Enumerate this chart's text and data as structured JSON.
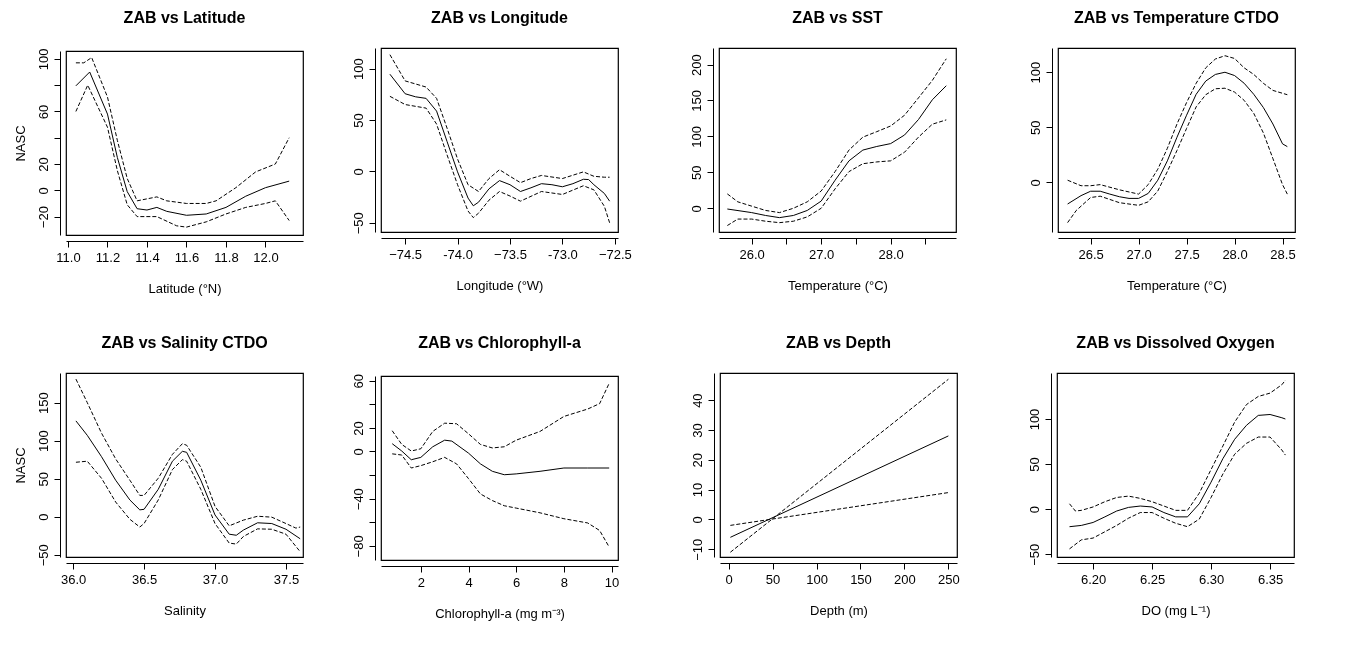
{
  "chart_data": [
    {
      "type": "line",
      "title": "ZAB vs Latitude",
      "xlabel": "Latitude (°N)",
      "ylabel": "NASC",
      "xlim": [
        10.99,
        12.19
      ],
      "ylim": [
        -34,
        106
      ],
      "xticks": [
        {
          "value": 11,
          "label": "11.0"
        },
        11.2,
        11.4,
        11.6,
        11.8,
        {
          "value": 12,
          "label": "12.0"
        }
      ],
      "yticks": [
        -20,
        0,
        20,
        {
          "value": 40,
          "label": null
        },
        60,
        {
          "value": 80,
          "label": null
        },
        100
      ],
      "series": [
        {
          "color": "#000000",
          "line_style": "solid",
          "x": [
            11.04,
            11.11,
            11.2,
            11.25,
            11.3,
            11.35,
            11.4,
            11.45,
            11.5,
            11.6,
            11.7,
            11.8,
            11.9,
            12.0,
            12.12
          ],
          "values": [
            79.5,
            90,
            58,
            25,
            -1,
            -14,
            -15,
            -13,
            -16,
            -19,
            -18,
            -13,
            -4.5,
            2,
            7
          ]
        },
        {
          "color": "#000000",
          "line_style": "dashed",
          "x": [
            11.04,
            11.08,
            11.12,
            11.2,
            11.25,
            11.3,
            11.35,
            11.45,
            11.5,
            11.6,
            11.7,
            11.75,
            11.85,
            11.95,
            12.05,
            12.12
          ],
          "values": [
            97,
            97,
            101,
            71,
            38,
            9,
            -8,
            -5,
            -8,
            -10,
            -10,
            -8,
            2,
            14,
            20,
            40
          ]
        },
        {
          "color": "#000000",
          "line_style": "dashed",
          "x": [
            11.04,
            11.1,
            11.2,
            11.25,
            11.3,
            11.35,
            11.45,
            11.55,
            11.6,
            11.7,
            11.8,
            11.9,
            12.0,
            12.05,
            12.12
          ],
          "values": [
            60,
            80,
            48,
            15,
            -11,
            -20,
            -20,
            -27,
            -28,
            -24,
            -18,
            -13,
            -10,
            -8,
            -23
          ]
        }
      ]
    },
    {
      "type": "line",
      "title": "ZAB vs Longitude",
      "xlabel": "Longitude (°W)",
      "xlim": [
        -74.73,
        -72.47
      ],
      "ylim": [
        -59,
        120
      ],
      "xticks": [
        -74.5,
        {
          "value": -74,
          "label": "-74.0"
        },
        -73.5,
        {
          "value": -73,
          "label": "-73.0"
        },
        -72.5
      ],
      "yticks": [
        -50,
        0,
        50,
        100
      ],
      "series": [
        {
          "color": "#000000",
          "line_style": "solid",
          "x": [
            -74.645,
            -74.5,
            -74.4,
            -74.3,
            -74.2,
            -74.1,
            -74.0,
            -73.9,
            -73.85,
            -73.8,
            -73.7,
            -73.6,
            -73.5,
            -73.4,
            -73.3,
            -73.2,
            -73.1,
            -73.0,
            -72.9,
            -72.8,
            -72.75,
            -72.7,
            -72.6,
            -72.55
          ],
          "values": [
            94.5,
            75.5,
            72.5,
            71,
            58.6,
            29,
            -0.5,
            -26,
            -33.5,
            -30,
            -17,
            -9,
            -13,
            -19.6,
            -16,
            -12,
            -13,
            -15,
            -12,
            -7.7,
            -8,
            -13,
            -21.5,
            -29
          ]
        },
        {
          "color": "#000000",
          "line_style": "dashed",
          "x": [
            -74.645,
            -74.5,
            -74.3,
            -74.2,
            -74.1,
            -74.0,
            -73.9,
            -73.8,
            -73.7,
            -73.6,
            -73.5,
            -73.4,
            -73.3,
            -73.2,
            -73.0,
            -72.8,
            -72.7,
            -72.6,
            -72.55
          ],
          "values": [
            113.5,
            88,
            82,
            71,
            42,
            12,
            -13,
            -19.6,
            -7,
            1.6,
            -4.8,
            -11,
            -7,
            -4,
            -7,
            -0.5,
            -4.8,
            -5.7,
            -5.7
          ]
        },
        {
          "color": "#000000",
          "line_style": "dashed",
          "x": [
            -74.645,
            -74.5,
            -74.3,
            -74.2,
            -74.1,
            -74.0,
            -73.9,
            -73.85,
            -73.8,
            -73.7,
            -73.6,
            -73.5,
            -73.4,
            -73.2,
            -73.0,
            -72.8,
            -72.7,
            -72.6,
            -72.55
          ],
          "values": [
            73,
            65,
            61.5,
            46,
            16,
            -13,
            -38.6,
            -45,
            -40.7,
            -28,
            -19.6,
            -24,
            -29,
            -19.6,
            -22.5,
            -14,
            -18,
            -34,
            -50
          ]
        }
      ]
    },
    {
      "type": "line",
      "title": "ZAB vs SST",
      "xlabel": "Temperature (°C)",
      "xlim": [
        25.53,
        28.94
      ],
      "ylim": [
        -33,
        223
      ],
      "xticks": [
        {
          "value": 26,
          "label": "26.0"
        },
        {
          "value": 26.5,
          "label": null
        },
        {
          "value": 27,
          "label": "27.0"
        },
        {
          "value": 27.5,
          "label": null
        },
        {
          "value": 28,
          "label": "28.0"
        },
        {
          "value": 28.5,
          "label": null
        }
      ],
      "yticks": [
        0,
        50,
        100,
        150,
        200
      ],
      "series": [
        {
          "color": "#000000",
          "line_style": "solid",
          "x": [
            25.65,
            26.0,
            26.2,
            26.4,
            26.6,
            26.8,
            27.0,
            27.2,
            27.4,
            27.6,
            27.8,
            28.0,
            28.2,
            28.4,
            28.6,
            28.8
          ],
          "values": [
            -1,
            -6,
            -10,
            -13,
            -10,
            -3,
            10,
            39,
            66,
            81,
            86,
            90,
            102,
            123.5,
            151,
            170.5
          ]
        },
        {
          "color": "#000000",
          "line_style": "dashed",
          "x": [
            25.65,
            25.8,
            26.0,
            26.2,
            26.4,
            26.6,
            26.8,
            27.0,
            27.2,
            27.4,
            27.6,
            27.8,
            28.0,
            28.2,
            28.4,
            28.6,
            28.8
          ],
          "values": [
            20,
            9,
            3,
            -3,
            -6,
            0,
            9,
            24,
            51,
            81,
            99,
            106.6,
            114.5,
            129.5,
            153.6,
            178,
            208
          ]
        },
        {
          "color": "#000000",
          "line_style": "dashed",
          "x": [
            25.65,
            25.8,
            26.0,
            26.2,
            26.4,
            26.6,
            26.8,
            27.0,
            27.2,
            27.4,
            27.6,
            27.8,
            28.0,
            28.2,
            28.4,
            28.6,
            28.8
          ],
          "values": [
            -24,
            -15,
            -15,
            -18,
            -20,
            -18,
            -12,
            0,
            27,
            51,
            62,
            64.5,
            66,
            78,
            99,
            117,
            123
          ]
        }
      ]
    },
    {
      "type": "line",
      "title": "ZAB vs Temperature CTDO",
      "xlabel": "Temperature (°C)",
      "xlim": [
        26.16,
        28.63
      ],
      "ylim": [
        -45,
        122
      ],
      "xticks": [
        26.5,
        {
          "value": 27,
          "label": "27.0"
        },
        27.5,
        {
          "value": 28,
          "label": "28.0"
        },
        28.5
      ],
      "yticks": [
        0,
        50,
        100
      ],
      "series": [
        {
          "color": "#000000",
          "line_style": "solid",
          "x": [
            26.26,
            26.4,
            26.5,
            26.6,
            26.7,
            26.8,
            26.9,
            27.0,
            27.1,
            27.2,
            27.3,
            27.4,
            27.5,
            27.6,
            27.7,
            27.8,
            27.9,
            28.0,
            28.1,
            28.2,
            28.3,
            28.4,
            28.5,
            28.55
          ],
          "values": [
            -19.6,
            -12,
            -8,
            -8,
            -10.6,
            -13,
            -14.5,
            -14.5,
            -10,
            2,
            19.6,
            41,
            61,
            80,
            92,
            98,
            100,
            97,
            90,
            80,
            68,
            53,
            35,
            32.5
          ]
        },
        {
          "color": "#000000",
          "line_style": "dashed",
          "x": [
            26.26,
            26.4,
            26.5,
            26.6,
            26.8,
            27.0,
            27.1,
            27.2,
            27.3,
            27.4,
            27.5,
            27.6,
            27.7,
            27.8,
            27.9,
            28.0,
            28.1,
            28.2,
            28.3,
            28.4,
            28.55
          ],
          "values": [
            2,
            -3,
            -3,
            -2,
            -6.7,
            -10.6,
            -2,
            12,
            31,
            53,
            72.5,
            90,
            104,
            112,
            115,
            112.5,
            104,
            98,
            90,
            83.5,
            79.6
          ]
        },
        {
          "color": "#000000",
          "line_style": "dashed",
          "x": [
            26.26,
            26.35,
            26.5,
            26.6,
            26.8,
            27.0,
            27.1,
            27.2,
            27.3,
            27.4,
            27.5,
            27.6,
            27.7,
            27.8,
            27.9,
            28.0,
            28.1,
            28.2,
            28.3,
            28.4,
            28.5,
            28.55
          ],
          "values": [
            -36.5,
            -25.5,
            -13.7,
            -12.5,
            -18.4,
            -20.8,
            -17.6,
            -7.8,
            10,
            29,
            49,
            68.6,
            79.6,
            85,
            85.5,
            82,
            74.5,
            62.7,
            45,
            21.6,
            -2,
            -10.6
          ]
        }
      ]
    },
    {
      "type": "line",
      "title": "ZAB vs Salinity CTDO",
      "xlabel": "Salinity",
      "ylabel": "NASC",
      "xlim": [
        35.95,
        37.62
      ],
      "ylim": [
        -53,
        189
      ],
      "xticks": [
        {
          "value": 36,
          "label": "36.0"
        },
        36.5,
        {
          "value": 37,
          "label": "37.0"
        },
        37.5
      ],
      "yticks": [
        -50,
        0,
        50,
        100,
        150
      ],
      "series": [
        {
          "color": "#000000",
          "line_style": "solid",
          "x": [
            36.02,
            36.1,
            36.2,
            36.3,
            36.4,
            36.47,
            36.5,
            36.6,
            36.7,
            36.77,
            36.8,
            36.9,
            37.0,
            37.1,
            37.15,
            37.2,
            37.3,
            37.4,
            37.5,
            37.6
          ],
          "values": [
            126,
            107,
            79,
            48,
            22,
            9,
            9.7,
            36,
            73,
            86,
            84.7,
            48,
            2.3,
            -23,
            -24.4,
            -17.6,
            -8,
            -9,
            -16.5,
            -29
          ]
        },
        {
          "color": "#000000",
          "line_style": "dashed",
          "x": [
            36.02,
            36.1,
            36.2,
            36.3,
            36.4,
            36.47,
            36.5,
            36.6,
            36.7,
            36.77,
            36.8,
            36.9,
            37.0,
            37.1,
            37.2,
            37.3,
            37.4,
            37.5,
            37.57,
            37.6
          ],
          "values": [
            181,
            150,
            110,
            76,
            48,
            28,
            28,
            50.6,
            82,
            96,
            94,
            65,
            13.6,
            -12,
            -4.5,
            0.6,
            -0.6,
            -9,
            -15,
            -13.6
          ]
        },
        {
          "color": "#000000",
          "line_style": "dashed",
          "x": [
            36.02,
            36.1,
            36.2,
            36.3,
            36.4,
            36.47,
            36.5,
            36.6,
            36.7,
            36.77,
            36.8,
            36.9,
            37.0,
            37.1,
            37.15,
            37.2,
            37.3,
            37.4,
            37.5,
            37.6
          ],
          "values": [
            71.6,
            73,
            50.6,
            19.3,
            -3.4,
            -13.6,
            -9,
            22,
            62,
            75,
            73,
            36,
            -9,
            -34.7,
            -36,
            -26,
            -16,
            -16.5,
            -23,
            -46
          ]
        }
      ]
    },
    {
      "type": "line",
      "title": "ZAB vs Chlorophyll-a",
      "xlabel": "Chlorophyll-a (mg m⁻³)",
      "xlim": [
        0.33,
        10.27
      ],
      "ylim": [
        -92,
        64
      ],
      "xticks": [
        2,
        4,
        6,
        8,
        10
      ],
      "yticks": [
        -80,
        {
          "value": -60,
          "label": null
        },
        -40,
        {
          "value": -20,
          "label": null
        },
        0,
        20,
        {
          "value": 40,
          "label": null
        },
        60
      ],
      "series": [
        {
          "color": "#000000",
          "line_style": "solid",
          "x": [
            0.8,
            1.2,
            1.6,
            2.0,
            2.5,
            3.0,
            3.3,
            4.0,
            4.5,
            5.0,
            5.5,
            6,
            7,
            8,
            9,
            9.9
          ],
          "values": [
            6.6,
            0.4,
            -7,
            -5,
            4,
            9.6,
            8.8,
            -1.4,
            -10.5,
            -16.8,
            -19.7,
            -19,
            -16.8,
            -14,
            -14,
            -14
          ]
        },
        {
          "color": "#000000",
          "line_style": "dashed",
          "x": [
            0.8,
            1.2,
            1.6,
            2.0,
            2.5,
            3.0,
            3.5,
            4.0,
            4.5,
            5.0,
            5.5,
            6,
            7,
            8,
            9,
            9.5,
            9.9
          ],
          "values": [
            17.6,
            6,
            0.4,
            2.3,
            17,
            24,
            23.5,
            15,
            6,
            3,
            4,
            9.6,
            17,
            29.7,
            36,
            40.6,
            57.8
          ]
        },
        {
          "color": "#000000",
          "line_style": "dashed",
          "x": [
            0.8,
            1.2,
            1.6,
            2.0,
            2.5,
            3.0,
            3.5,
            4.0,
            4.5,
            5.0,
            5.5,
            6,
            7,
            8,
            9,
            9.5,
            9.9
          ],
          "values": [
            -2,
            -3,
            -14,
            -12,
            -8.7,
            -5,
            -10.5,
            -23,
            -36,
            -41.6,
            -46,
            -48,
            -52,
            -57,
            -60.6,
            -67,
            -81
          ]
        }
      ]
    },
    {
      "type": "line",
      "title": "ZAB vs Depth",
      "xlabel": "Depth (m)",
      "xlim": [
        -9.8,
        259.8
      ],
      "ylim": [
        -12.6,
        49.1
      ],
      "xticks": [
        0,
        50,
        100,
        150,
        200,
        250
      ],
      "yticks": [
        -10,
        0,
        10,
        20,
        30,
        40
      ],
      "series": [
        {
          "color": "#000000",
          "line_style": "solid",
          "x": [
            2,
            250
          ],
          "values": [
            -6,
            28
          ]
        },
        {
          "color": "#000000",
          "line_style": "dashed",
          "x": [
            2,
            250
          ],
          "values": [
            -11,
            47
          ]
        },
        {
          "color": "#000000",
          "line_style": "dashed",
          "x": [
            2,
            250
          ],
          "values": [
            -2,
            9
          ]
        }
      ]
    },
    {
      "type": "line",
      "title": "ZAB vs Dissolved Oxygen",
      "xlabel": "DO (mg L⁻¹)",
      "xlim": [
        6.1694,
        6.3703
      ],
      "ylim": [
        -53,
        151
      ],
      "xticks": [
        {
          "value": 6.2,
          "label": "6.20"
        },
        6.25,
        {
          "value": 6.3,
          "label": "6.30"
        },
        6.35
      ],
      "yticks": [
        -50,
        0,
        50,
        100
      ],
      "series": [
        {
          "color": "#000000",
          "line_style": "solid",
          "x": [
            6.18,
            6.19,
            6.2,
            6.21,
            6.22,
            6.23,
            6.24,
            6.25,
            6.26,
            6.27,
            6.28,
            6.29,
            6.3,
            6.31,
            6.32,
            6.33,
            6.34,
            6.35,
            6.36,
            6.363
          ],
          "values": [
            -19.4,
            -18,
            -14.7,
            -8.5,
            -2,
            2,
            3.5,
            2.5,
            -3.7,
            -8.5,
            -8.5,
            6,
            30,
            56,
            77.5,
            93,
            104,
            105,
            101.4,
            100
          ]
        },
        {
          "color": "#000000",
          "line_style": "dashed",
          "x": [
            6.18,
            6.185,
            6.19,
            6.2,
            6.21,
            6.22,
            6.23,
            6.24,
            6.25,
            6.26,
            6.27,
            6.28,
            6.29,
            6.3,
            6.31,
            6.32,
            6.33,
            6.34,
            6.35,
            6.36,
            6.363
          ],
          "values": [
            6,
            -2,
            -1.3,
            2.5,
            8.3,
            13,
            14.5,
            12,
            8.3,
            3.5,
            -1.3,
            -1.3,
            17.8,
            44,
            70,
            96.6,
            116,
            125,
            128.7,
            138,
            143
          ]
        },
        {
          "color": "#000000",
          "line_style": "dashed",
          "x": [
            6.18,
            6.19,
            6.2,
            6.21,
            6.22,
            6.23,
            6.24,
            6.25,
            6.26,
            6.27,
            6.28,
            6.29,
            6.3,
            6.31,
            6.32,
            6.33,
            6.34,
            6.35,
            6.36,
            6.363
          ],
          "values": [
            -44,
            -34,
            -32,
            -25,
            -18,
            -10,
            -3.7,
            -3.7,
            -10,
            -15.6,
            -19.4,
            -11,
            13,
            39,
            61,
            73,
            80,
            80,
            65.6,
            60
          ]
        }
      ]
    }
  ]
}
